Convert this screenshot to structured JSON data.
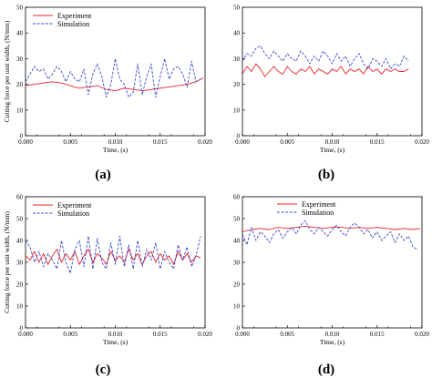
{
  "chart_data": [
    {
      "type": "line",
      "panel_label": "(a)",
      "xlabel": "Time, (s)",
      "ylabel": "Cutting force per unit width, (N/mm)",
      "xlim": [
        0,
        0.02
      ],
      "ylim": [
        0,
        50
      ],
      "xticks": [
        "0.000",
        "0.005",
        "0.010",
        "0.015",
        "0.020"
      ],
      "yticks": [
        "0",
        "10",
        "20",
        "30",
        "40",
        "50"
      ],
      "legend_position": "top-left",
      "series": [
        {
          "name": "Experiment",
          "color": "#e8232a",
          "dash": "solid",
          "x": [
            0,
            0.001,
            0.002,
            0.003,
            0.004,
            0.005,
            0.006,
            0.007,
            0.008,
            0.009,
            0.01,
            0.011,
            0.012,
            0.013,
            0.014,
            0.015,
            0.016,
            0.017,
            0.018,
            0.019,
            0.0198
          ],
          "y": [
            19.5,
            20,
            20.5,
            21,
            20.5,
            19.5,
            18.5,
            19,
            19.5,
            18,
            17.5,
            18.5,
            18,
            17.5,
            18,
            18.5,
            19,
            19.5,
            20,
            21,
            22.5
          ]
        },
        {
          "name": "Simulation",
          "color": "#3b49c8",
          "dash": "dashed",
          "x": [
            0,
            0.0005,
            0.001,
            0.0015,
            0.002,
            0.0025,
            0.003,
            0.0035,
            0.004,
            0.0045,
            0.005,
            0.0055,
            0.006,
            0.0065,
            0.007,
            0.0075,
            0.008,
            0.0085,
            0.009,
            0.0095,
            0.01,
            0.0105,
            0.011,
            0.0115,
            0.012,
            0.0125,
            0.013,
            0.0135,
            0.014,
            0.0145,
            0.015,
            0.0155,
            0.016,
            0.0165,
            0.017,
            0.0175,
            0.018,
            0.0185,
            0.019,
            0.0195
          ],
          "y": [
            21,
            24,
            27,
            25,
            26,
            22,
            24,
            27,
            25,
            21,
            25,
            22,
            21,
            26,
            16,
            24,
            28,
            23,
            15,
            20,
            30,
            22,
            20,
            15,
            17,
            28,
            16,
            23,
            28,
            15,
            23,
            30,
            22,
            26,
            27,
            24,
            19,
            29,
            21,
            22
          ]
        }
      ]
    },
    {
      "type": "line",
      "panel_label": "(b)",
      "xlabel": "Time, (s)",
      "ylabel": "",
      "xlim": [
        0,
        0.02
      ],
      "ylim": [
        0,
        50
      ],
      "xticks": [
        "0.000",
        "0.005",
        "0.010",
        "0.015",
        "0.020"
      ],
      "yticks": [
        "0",
        "10",
        "20",
        "30",
        "40",
        "50"
      ],
      "legend_position": "none",
      "series": [
        {
          "name": "",
          "color": "#e8232a",
          "dash": "solid",
          "x": [
            0,
            0.0005,
            0.001,
            0.0015,
            0.002,
            0.0025,
            0.003,
            0.0035,
            0.004,
            0.0045,
            0.005,
            0.0055,
            0.006,
            0.0065,
            0.007,
            0.0075,
            0.008,
            0.0085,
            0.009,
            0.0095,
            0.01,
            0.0105,
            0.011,
            0.0115,
            0.012,
            0.0125,
            0.013,
            0.0135,
            0.014,
            0.0145,
            0.015,
            0.0155,
            0.016,
            0.0165,
            0.017,
            0.0175,
            0.018,
            0.0185
          ],
          "y": [
            24,
            27,
            25,
            28,
            26,
            23,
            25,
            27,
            25,
            24,
            27,
            25,
            24,
            26,
            25,
            27,
            24,
            26,
            25,
            24,
            26,
            25,
            27,
            24,
            26,
            25,
            26,
            24,
            27,
            25,
            26,
            24,
            26,
            25,
            26,
            25,
            25,
            26
          ]
        },
        {
          "name": "",
          "color": "#3b49c8",
          "dash": "dashed",
          "x": [
            0,
            0.0005,
            0.001,
            0.0015,
            0.002,
            0.0025,
            0.003,
            0.0035,
            0.004,
            0.0045,
            0.005,
            0.0055,
            0.006,
            0.0065,
            0.007,
            0.0075,
            0.008,
            0.0085,
            0.009,
            0.0095,
            0.01,
            0.0105,
            0.011,
            0.0115,
            0.012,
            0.0125,
            0.013,
            0.0135,
            0.014,
            0.0145,
            0.015,
            0.0155,
            0.016,
            0.0165,
            0.017,
            0.0175,
            0.018,
            0.0185
          ],
          "y": [
            29,
            32,
            31,
            34,
            35,
            32,
            30,
            33,
            31,
            29,
            32,
            30,
            29,
            33,
            31,
            28,
            31,
            29,
            33,
            31,
            28,
            32,
            29,
            31,
            27,
            30,
            32,
            28,
            26,
            30,
            29,
            27,
            30,
            26,
            28,
            27,
            31,
            29
          ]
        }
      ]
    },
    {
      "type": "line",
      "panel_label": "(c)",
      "xlabel": "Time, (s)",
      "ylabel": "Cutting force per unit width, (N/mm)",
      "xlim": [
        0,
        0.02
      ],
      "ylim": [
        0,
        60
      ],
      "xticks": [
        "0.000",
        "0.005",
        "0.010",
        "0.015",
        "0.020"
      ],
      "yticks": [
        "0",
        "10",
        "20",
        "30",
        "40",
        "50",
        "60"
      ],
      "legend_position": "top-left",
      "series": [
        {
          "name": "Experiment",
          "color": "#e8232a",
          "dash": "solid",
          "x": [
            0,
            0.0005,
            0.001,
            0.0015,
            0.002,
            0.0025,
            0.003,
            0.0035,
            0.004,
            0.0045,
            0.005,
            0.0055,
            0.006,
            0.0065,
            0.007,
            0.0075,
            0.008,
            0.0085,
            0.009,
            0.0095,
            0.01,
            0.0105,
            0.011,
            0.0115,
            0.012,
            0.0125,
            0.013,
            0.0135,
            0.014,
            0.0145,
            0.015,
            0.0155,
            0.016,
            0.0165,
            0.017,
            0.0175,
            0.018,
            0.0185,
            0.019,
            0.0195
          ],
          "y": [
            33,
            31,
            35,
            30,
            34,
            29,
            33,
            36,
            30,
            34,
            31,
            35,
            29,
            33,
            36,
            30,
            34,
            32,
            29,
            35,
            31,
            33,
            30,
            36,
            31,
            34,
            29,
            33,
            35,
            30,
            34,
            31,
            33,
            29,
            35,
            31,
            34,
            30,
            33,
            32
          ]
        },
        {
          "name": "Simulation",
          "color": "#3b49c8",
          "dash": "dashed",
          "x": [
            0,
            0.0005,
            0.001,
            0.0015,
            0.002,
            0.0025,
            0.003,
            0.0035,
            0.004,
            0.0045,
            0.005,
            0.0055,
            0.006,
            0.0065,
            0.007,
            0.0075,
            0.008,
            0.0085,
            0.009,
            0.0095,
            0.01,
            0.0105,
            0.011,
            0.0115,
            0.012,
            0.0125,
            0.013,
            0.0135,
            0.014,
            0.0145,
            0.015,
            0.0155,
            0.016,
            0.0165,
            0.017,
            0.0175,
            0.018,
            0.0185,
            0.019,
            0.0195
          ],
          "y": [
            40,
            37,
            30,
            35,
            28,
            34,
            31,
            27,
            40,
            30,
            25,
            36,
            40,
            28,
            42,
            27,
            41,
            30,
            27,
            39,
            29,
            42,
            28,
            38,
            27,
            40,
            28,
            36,
            31,
            39,
            27,
            35,
            30,
            27,
            38,
            31,
            37,
            28,
            33,
            42
          ]
        }
      ]
    },
    {
      "type": "line",
      "panel_label": "(d)",
      "xlabel": "Time, (s)",
      "ylabel": "",
      "xlim": [
        0,
        0.02
      ],
      "ylim": [
        0,
        60
      ],
      "xticks": [
        "0.000",
        "0.005",
        "0.010",
        "0.015",
        "0.020"
      ],
      "yticks": [
        "0",
        "10",
        "20",
        "30",
        "40",
        "50",
        "60"
      ],
      "legend_position": "top-center",
      "series": [
        {
          "name": "Experiment",
          "color": "#e8232a",
          "dash": "solid",
          "x": [
            0,
            0.001,
            0.002,
            0.003,
            0.004,
            0.005,
            0.006,
            0.007,
            0.008,
            0.009,
            0.01,
            0.011,
            0.012,
            0.013,
            0.014,
            0.015,
            0.016,
            0.017,
            0.018,
            0.019,
            0.0198
          ],
          "y": [
            44,
            45,
            45.5,
            45,
            46,
            45.5,
            46,
            46.5,
            46,
            45.5,
            46,
            46,
            45.5,
            46,
            45.5,
            46,
            45.5,
            45,
            45.5,
            45,
            45.5
          ]
        },
        {
          "name": "Simulation",
          "color": "#3b49c8",
          "dash": "dashed",
          "x": [
            0,
            0.0005,
            0.001,
            0.0015,
            0.002,
            0.0025,
            0.003,
            0.0035,
            0.004,
            0.0045,
            0.005,
            0.0055,
            0.006,
            0.0065,
            0.007,
            0.0075,
            0.008,
            0.0085,
            0.009,
            0.0095,
            0.01,
            0.0105,
            0.011,
            0.0115,
            0.012,
            0.0125,
            0.013,
            0.0135,
            0.014,
            0.0145,
            0.015,
            0.0155,
            0.016,
            0.0165,
            0.017,
            0.0175,
            0.018,
            0.0185,
            0.019,
            0.0195
          ],
          "y": [
            43,
            38,
            46,
            40,
            44,
            42,
            39,
            43,
            45,
            41,
            44,
            46,
            43,
            47,
            49,
            45,
            43,
            46,
            44,
            42,
            45,
            47,
            44,
            42,
            46,
            48,
            46,
            43,
            45,
            41,
            44,
            40,
            42,
            44,
            39,
            43,
            40,
            42,
            37,
            36
          ]
        }
      ]
    }
  ]
}
